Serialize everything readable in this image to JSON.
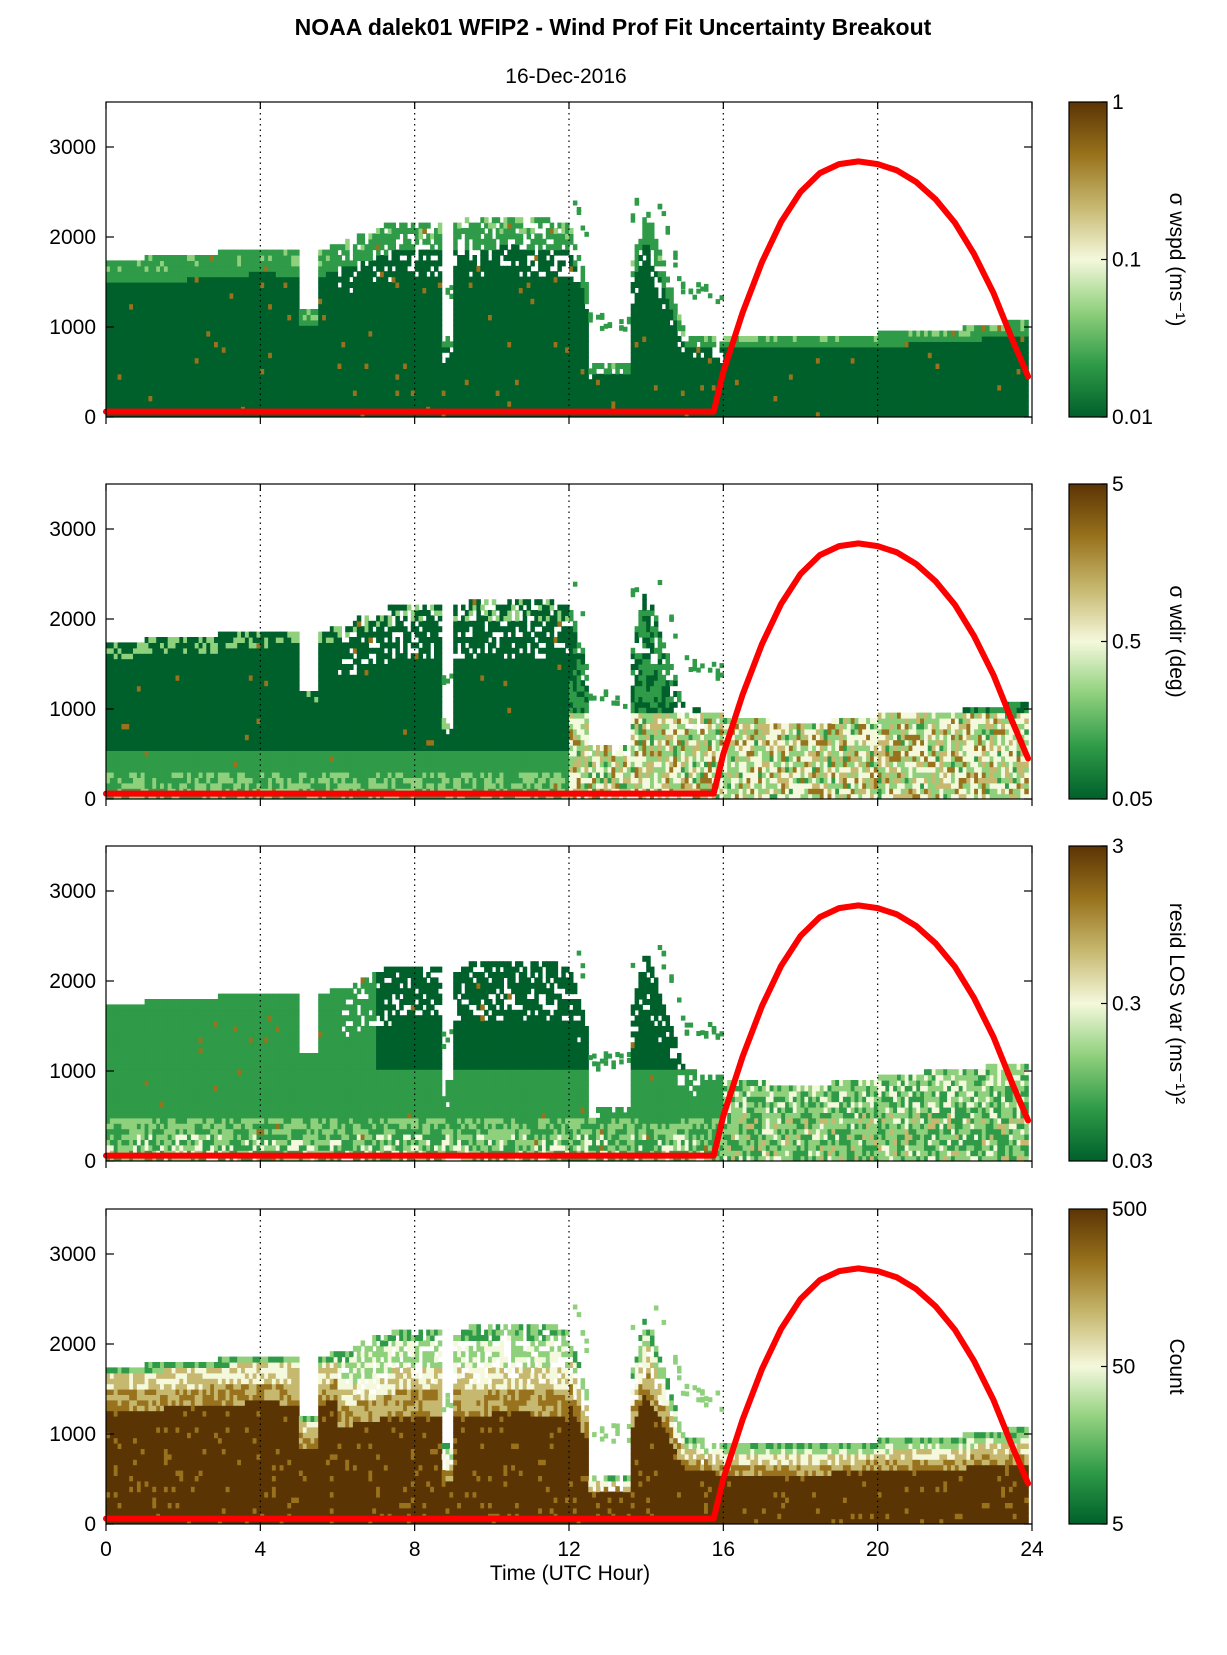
{
  "title": "NOAA dalek01 WFIP2 - Wind Prof Fit Uncertainty Breakout",
  "subtitle": "16-Dec-2016",
  "chart_data": {
    "type": "heatmap",
    "xlabel": "Time (UTC Hour)",
    "xlim": [
      0,
      24
    ],
    "xticks": [
      "0",
      "4",
      "8",
      "12",
      "16",
      "20",
      "24"
    ],
    "ylim": [
      0,
      3500
    ],
    "yticks": [
      "0",
      "1000",
      "2000",
      "3000"
    ],
    "grid": "vertical dotted lines at 4, 8, 12, 16, 20",
    "colormap": [
      "#00602b",
      "#2f9b48",
      "#8fd07c",
      "#f4f8dc",
      "#c7b870",
      "#98721c",
      "#5b3404"
    ],
    "overlay": {
      "color": "#ff0000",
      "note": "red curve: 0 before ~15.75 h, rising to ~2800 at 20 h, ~450 at 24 h",
      "x": [
        0,
        15.75,
        16.0,
        16.5,
        17,
        17.5,
        18,
        18.5,
        19,
        19.5,
        20,
        20.5,
        21,
        21.5,
        22,
        22.5,
        23,
        23.5,
        23.9
      ],
      "y": [
        60,
        60,
        500,
        1160,
        1720,
        2170,
        2500,
        2710,
        2810,
        2840,
        2810,
        2740,
        2610,
        2420,
        2160,
        1810,
        1380,
        850,
        450
      ]
    },
    "panels": [
      {
        "name": "sigma-wspd",
        "colorbar_label": "σ wspd (ms⁻¹)",
        "colorbar_ticks": [
          "1",
          "0.1",
          "0.01"
        ],
        "top_extent_m": [
          [
            0,
            1720
          ],
          [
            2,
            1760
          ],
          [
            4,
            1850
          ],
          [
            5.5,
            1800
          ],
          [
            7.5,
            2150
          ],
          [
            9,
            2150
          ],
          [
            10.5,
            2200
          ],
          [
            12,
            2150
          ],
          [
            13,
            650
          ],
          [
            14,
            2320
          ],
          [
            15,
            900
          ],
          [
            16,
            850
          ],
          [
            18,
            850
          ],
          [
            20,
            900
          ],
          [
            22,
            950
          ],
          [
            23.9,
            1050
          ]
        ],
        "missing_ms": [
          [
            5.0,
            5.5,
            1150
          ],
          [
            8.7,
            9.0,
            850
          ],
          [
            12.5,
            13.6,
            550
          ]
        ],
        "field_description": "Mostly dark green (~0.01–0.03 ms⁻¹) throughout, lighter green near top edges; occasional brown/tan cells near top of data."
      },
      {
        "name": "sigma-wdir",
        "colorbar_label": "σ wdir (deg)",
        "colorbar_ticks": [
          "5",
          "0.5",
          "0.05"
        ],
        "top_extent_m": [
          [
            0,
            1720
          ],
          [
            2,
            1760
          ],
          [
            4,
            1850
          ],
          [
            5.5,
            1800
          ],
          [
            7.5,
            2150
          ],
          [
            9,
            2150
          ],
          [
            10.5,
            2200
          ],
          [
            12,
            2150
          ],
          [
            13,
            650
          ],
          [
            14,
            2320
          ],
          [
            15,
            1000
          ],
          [
            16,
            900
          ],
          [
            18,
            800
          ],
          [
            20,
            900
          ],
          [
            22,
            950
          ],
          [
            23.9,
            1050
          ]
        ],
        "missing_ms": [
          [
            5.0,
            5.5,
            1150
          ],
          [
            8.7,
            9.0,
            850
          ],
          [
            12.5,
            13.6,
            600
          ]
        ],
        "field_description": "Dark green 0–12 h with lighter bands near the surface; after ~12 h mostly pale green/yellow with scattered brown cells (~1–5 deg) below 1000 m."
      },
      {
        "name": "resid-los-var",
        "colorbar_label": "resid LOS var (ms⁻¹)²",
        "colorbar_ticks": [
          "3",
          "0.3",
          "0.03"
        ],
        "top_extent_m": [
          [
            0,
            1720
          ],
          [
            2,
            1760
          ],
          [
            4,
            1850
          ],
          [
            5.5,
            1800
          ],
          [
            7.5,
            2150
          ],
          [
            9,
            2150
          ],
          [
            10.5,
            2200
          ],
          [
            12,
            2150
          ],
          [
            13,
            650
          ],
          [
            14,
            2320
          ],
          [
            15,
            1000
          ],
          [
            16,
            900
          ],
          [
            18,
            800
          ],
          [
            20,
            900
          ],
          [
            22,
            1000
          ],
          [
            23.9,
            1050
          ]
        ],
        "missing_ms": [
          [
            5.0,
            5.5,
            1150
          ],
          [
            8.7,
            9.0,
            850
          ],
          [
            12.5,
            13.6,
            600
          ]
        ],
        "field_description": "Medium green with lighter streaks below ~500 m; dark green above 1000 m between 7–15 h; after 16 h light green with yellow/tan patches near surface."
      },
      {
        "name": "count",
        "colorbar_label": "Count",
        "colorbar_ticks": [
          "500",
          "50",
          "5"
        ],
        "top_extent_m": [
          [
            0,
            1720
          ],
          [
            2,
            1760
          ],
          [
            4,
            1850
          ],
          [
            5.5,
            1800
          ],
          [
            7.5,
            2150
          ],
          [
            9,
            2150
          ],
          [
            10.5,
            2200
          ],
          [
            12,
            2150
          ],
          [
            13,
            650
          ],
          [
            14,
            2320
          ],
          [
            15,
            950
          ],
          [
            16,
            850
          ],
          [
            18,
            850
          ],
          [
            20,
            900
          ],
          [
            22,
            950
          ],
          [
            23.9,
            1050
          ]
        ],
        "missing_ms": [
          [
            5.0,
            5.5,
            1150
          ],
          [
            8.7,
            9.0,
            850
          ],
          [
            12.5,
            13.6,
            500
          ]
        ],
        "field_description": "Dark brown (~500) in the lower layer (to ~1500 m early, ~600–900 m later), fading through tan/beige to light green toward the top edge."
      }
    ]
  }
}
